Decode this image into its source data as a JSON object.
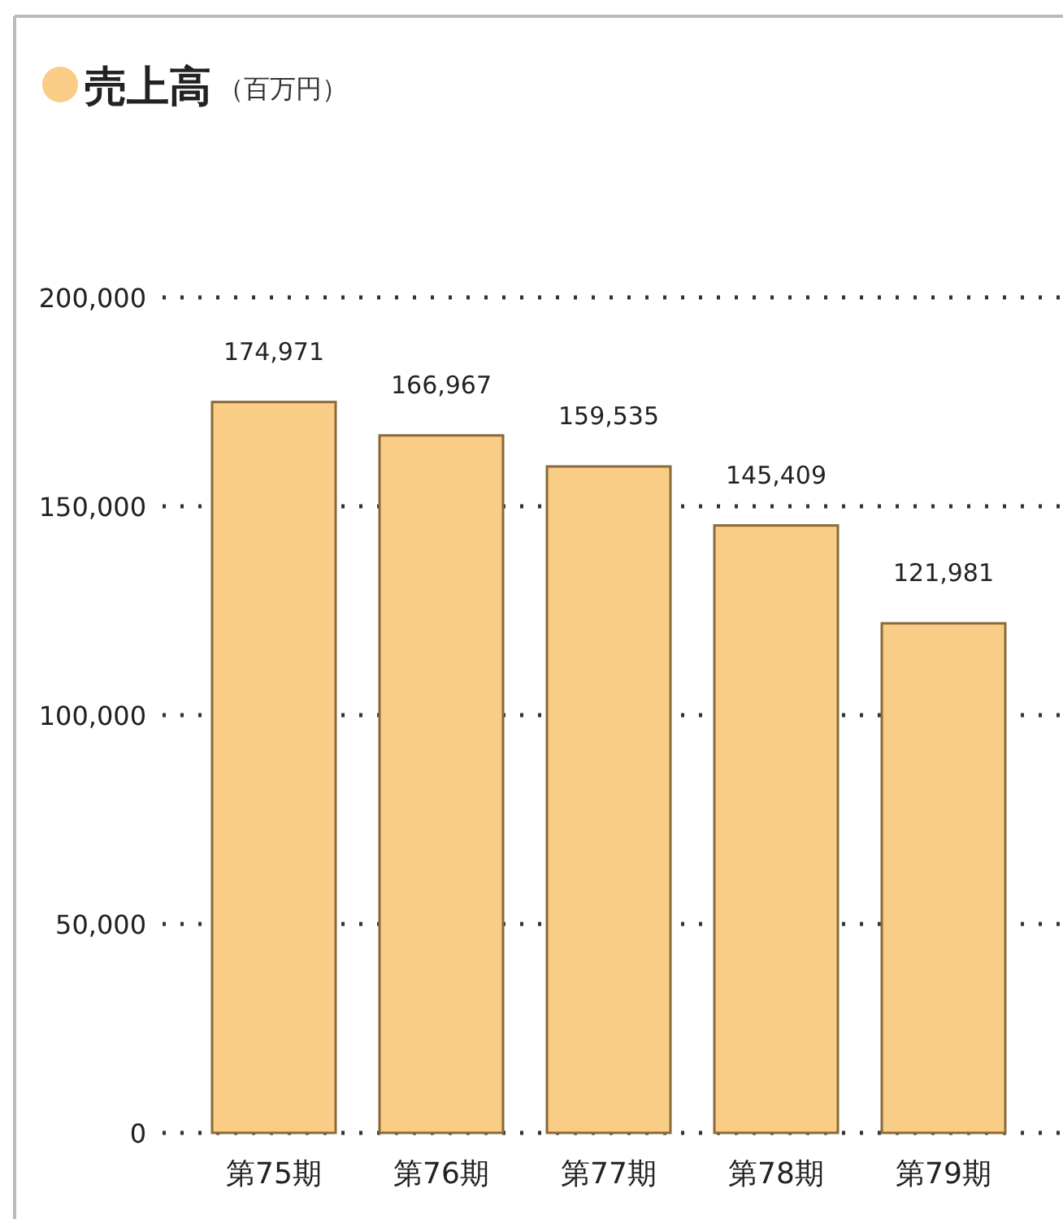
{
  "chart_data": {
    "type": "bar",
    "title": "売上高",
    "subtitle": "（百万円）",
    "categories": [
      "第75期",
      "第76期",
      "第77期",
      "第78期",
      "第79期"
    ],
    "values": [
      174971,
      166967,
      159535,
      145409,
      121981
    ],
    "color": "#f9cd85",
    "ylim": [
      0,
      200000
    ],
    "yticks": [
      {
        "value": 0,
        "label": "0"
      },
      {
        "value": 50000,
        "label": "50,000"
      },
      {
        "value": 100000,
        "label": "100,000"
      },
      {
        "value": 150000,
        "label": "150,000"
      },
      {
        "value": 200000,
        "label": "200,000"
      }
    ],
    "value_labels": [
      "174,971",
      "166,967",
      "159,535",
      "145,409",
      "121,981"
    ],
    "grid": "y"
  }
}
